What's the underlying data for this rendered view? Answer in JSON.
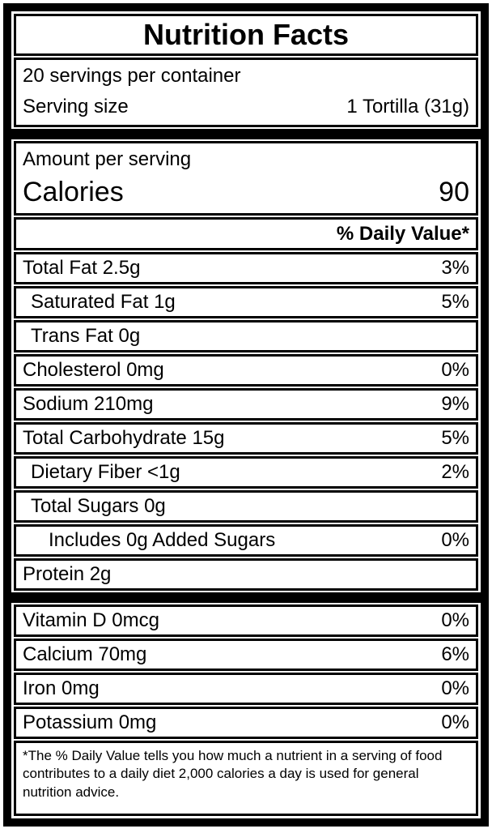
{
  "colors": {
    "text": "#000000",
    "background": "#ffffff",
    "border": "#000000"
  },
  "label": {
    "title": "Nutrition Facts",
    "servings_per_container": "20 servings per container",
    "serving_size_label": "Serving size",
    "serving_size_value": "1 Tortilla (31g)",
    "amount_per_serving": "Amount per serving",
    "calories_label": "Calories",
    "calories_value": "90",
    "daily_value_header": "% Daily Value*",
    "nutrients": [
      {
        "name": "Total Fat 2.5g",
        "dv": "3%"
      },
      {
        "name": "Saturated Fat 1g",
        "dv": "5%"
      },
      {
        "name": "Trans Fat 0g",
        "dv": ""
      },
      {
        "name": "Cholesterol 0mg",
        "dv": "0%"
      },
      {
        "name": "Sodium 210mg",
        "dv": "9%"
      },
      {
        "name": "Total Carbohydrate 15g",
        "dv": "5%"
      },
      {
        "name": "Dietary Fiber <1g",
        "dv": "2%"
      },
      {
        "name": "Total Sugars 0g",
        "dv": ""
      },
      {
        "name": "Includes 0g Added Sugars",
        "dv": "0%"
      },
      {
        "name": "Protein 2g",
        "dv": ""
      }
    ],
    "vitamins": [
      {
        "name": "Vitamin D 0mcg",
        "dv": "0%"
      },
      {
        "name": "Calcium 70mg",
        "dv": "6%"
      },
      {
        "name": "Iron 0mg",
        "dv": "0%"
      },
      {
        "name": "Potassium 0mg",
        "dv": "0%"
      }
    ],
    "footnote": "*The % Daily Value tells you how much a nutrient in a serving of food contributes to a daily diet 2,000 calories a day is used for general nutrition advice."
  }
}
